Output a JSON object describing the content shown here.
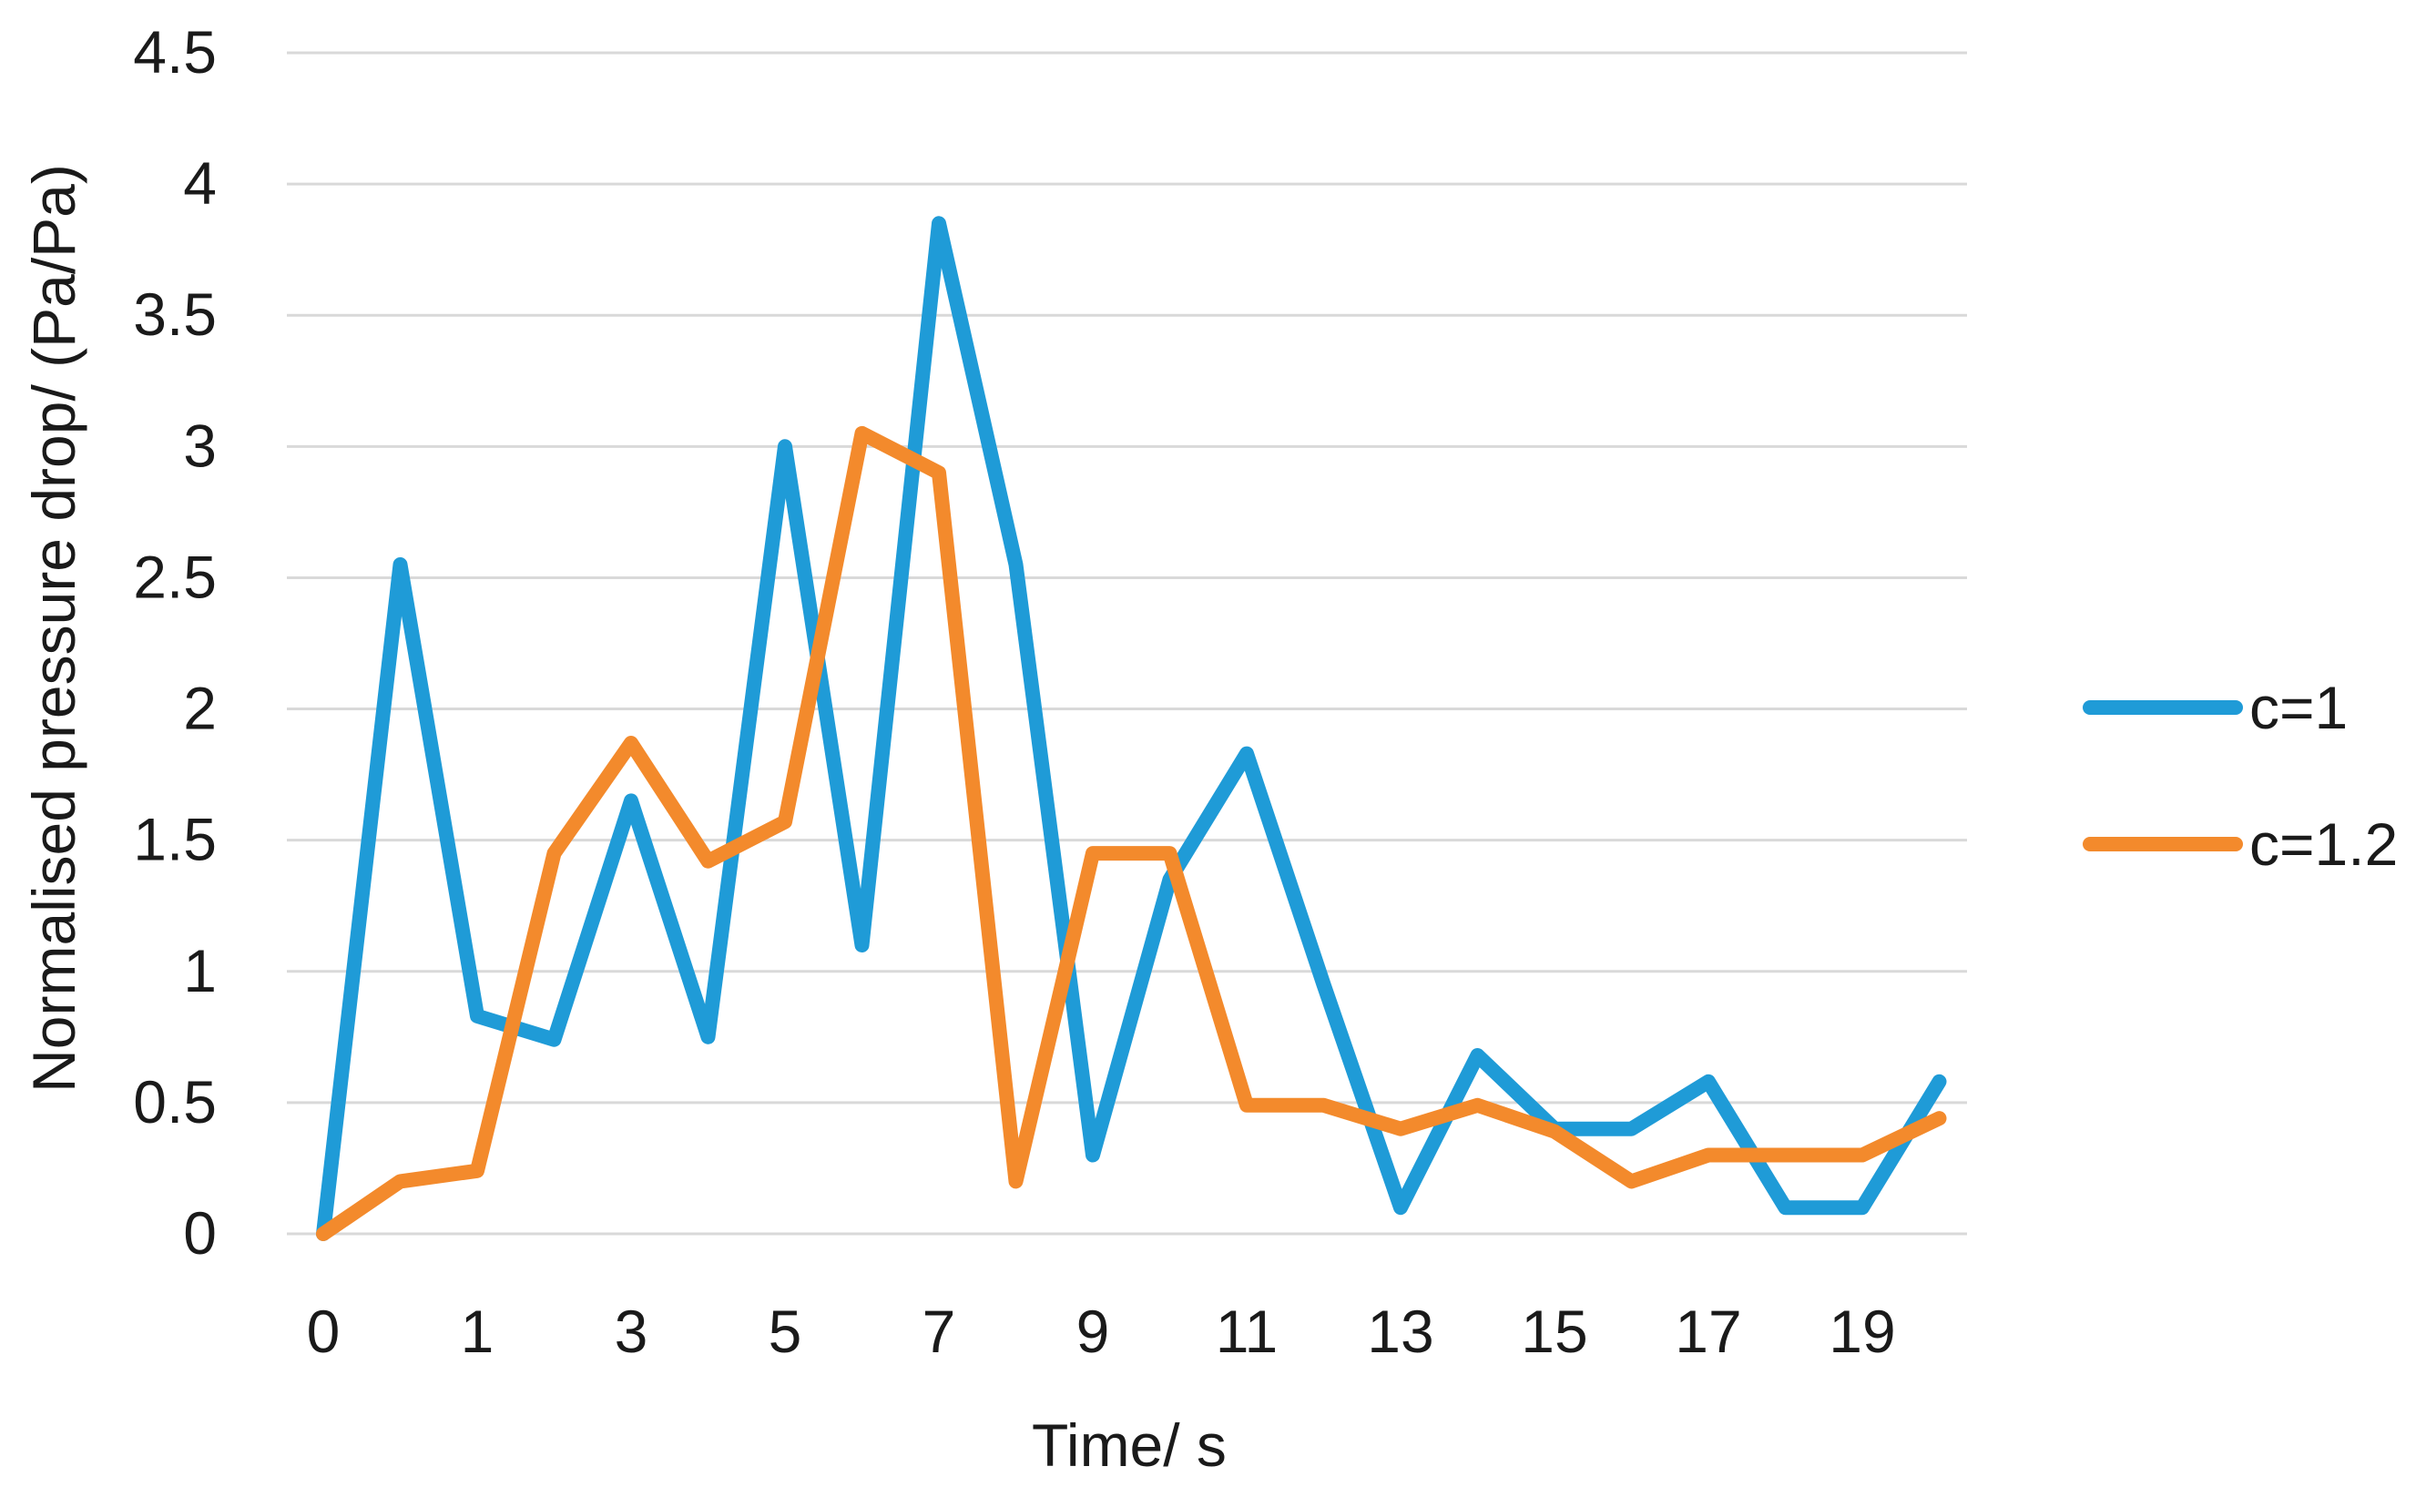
{
  "chart_data": {
    "type": "line",
    "xlabel": "Time/ s",
    "ylabel": "Normalised pressure drop/ (Pa/Pa)",
    "ylim": [
      0,
      4.5
    ],
    "y_ticks": [
      "0",
      "0.5",
      "1",
      "1.5",
      "2",
      "2.5",
      "3",
      "3.5",
      "4",
      "4.5"
    ],
    "x_tick_labels": [
      "0",
      "1",
      "3",
      "5",
      "7",
      "9",
      "11",
      "13",
      "15",
      "17",
      "19"
    ],
    "grid": true,
    "legend_position": "right",
    "series": [
      {
        "name": "c=1",
        "color": "#1f9bd7",
        "values": [
          0,
          2.55,
          0.83,
          0.74,
          1.65,
          0.75,
          3.0,
          1.1,
          3.85,
          2.55,
          0.3,
          1.35,
          1.83,
          0.95,
          0.1,
          0.68,
          0.4,
          0.4,
          0.58,
          0.1,
          0.1,
          0.58
        ]
      },
      {
        "name": "c=1.2",
        "color": "#f38a2c",
        "values": [
          0,
          0.2,
          0.24,
          1.45,
          1.87,
          1.42,
          1.57,
          3.05,
          2.9,
          0.2,
          1.45,
          1.45,
          0.49,
          0.49,
          0.4,
          0.49,
          0.39,
          0.2,
          0.3,
          0.3,
          0.3,
          0.44
        ]
      }
    ]
  }
}
